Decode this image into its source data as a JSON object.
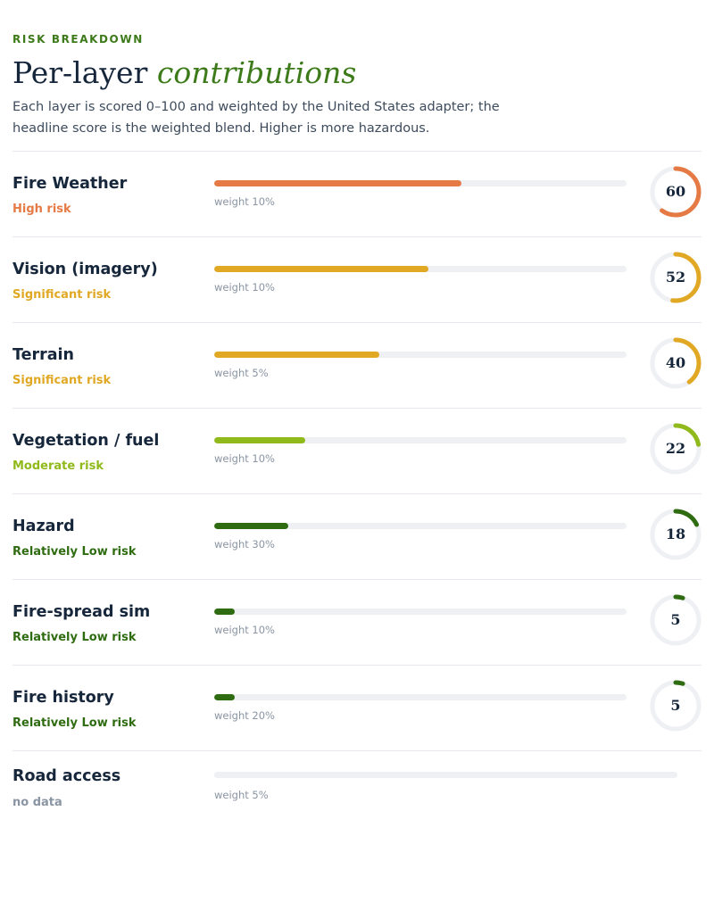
{
  "header": {
    "eyebrow": "RISK BREAKDOWN",
    "title_plain": "Per-layer",
    "title_emphasis": "contributions",
    "description": "Each layer is scored 0–100 and weighted by the United States adapter; the headline score is the weighted blend. Higher is more hazardous."
  },
  "colors": {
    "high": "#e57a45",
    "significant": "#e0a823",
    "moderate": "#90b91b",
    "low": "#2f6c11",
    "track": "#eef0f3",
    "nodata": "#8a95a3"
  },
  "layers": [
    {
      "name": "Fire Weather",
      "risk": "High risk",
      "weight": "weight 10%",
      "score": 60,
      "score_label": "60",
      "color": "#e57a45"
    },
    {
      "name": "Vision (imagery)",
      "risk": "Significant risk",
      "weight": "weight 10%",
      "score": 52,
      "score_label": "52",
      "color": "#e0a823"
    },
    {
      "name": "Terrain",
      "risk": "Significant risk",
      "weight": "weight 5%",
      "score": 40,
      "score_label": "40",
      "color": "#e0a823"
    },
    {
      "name": "Vegetation / fuel",
      "risk": "Moderate risk",
      "weight": "weight 10%",
      "score": 22,
      "score_label": "22",
      "color": "#90b91b"
    },
    {
      "name": "Hazard",
      "risk": "Relatively Low risk",
      "weight": "weight 30%",
      "score": 18,
      "score_label": "18",
      "color": "#2f6c11"
    },
    {
      "name": "Fire-spread sim",
      "risk": "Relatively Low risk",
      "weight": "weight 10%",
      "score": 5,
      "score_label": "5",
      "color": "#2f6c11"
    },
    {
      "name": "Fire history",
      "risk": "Relatively Low risk",
      "weight": "weight 20%",
      "score": 5,
      "score_label": "5",
      "color": "#2f6c11"
    },
    {
      "name": "Road access",
      "risk": "no data",
      "weight": "weight 5%",
      "score": null,
      "score_label": null,
      "color": "#8a95a3"
    }
  ]
}
